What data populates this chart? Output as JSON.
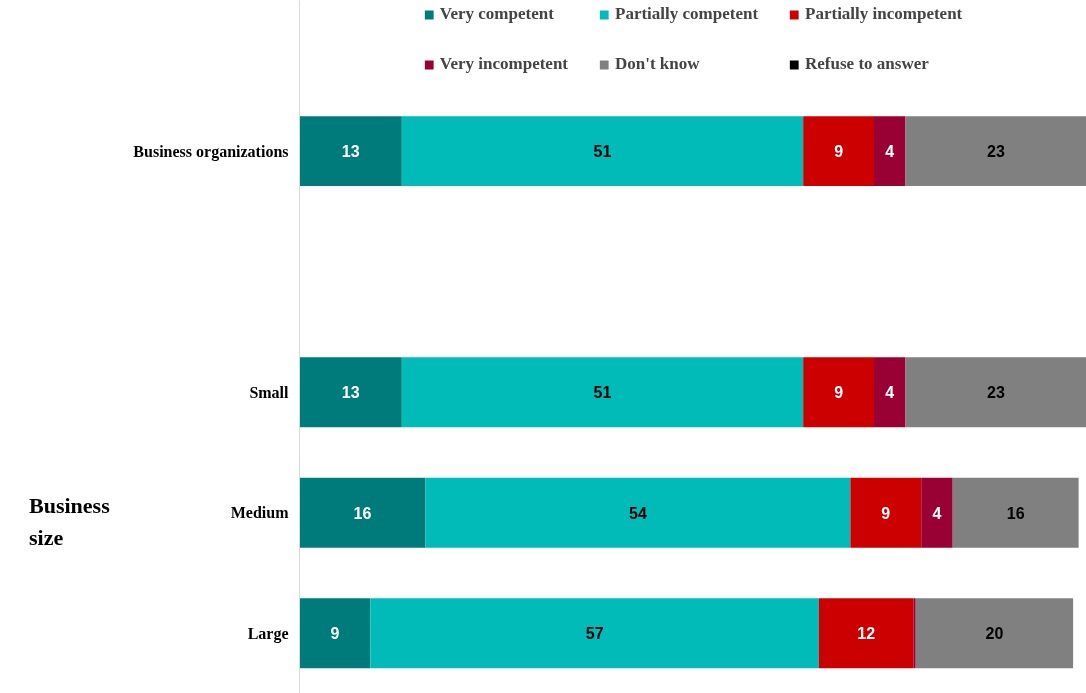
{
  "chart_data": {
    "type": "bar",
    "orientation": "horizontal",
    "stacked": true,
    "legend": "top",
    "categories": [
      "Business organizations",
      null,
      "Small",
      "Medium",
      "Large"
    ],
    "series": [
      {
        "name": "Very competent",
        "color": "#007b7b",
        "values": [
          13,
          null,
          13,
          16,
          9
        ],
        "value_labels": [
          "13",
          null,
          "13",
          "16",
          "9"
        ]
      },
      {
        "name": "Partially competent",
        "color": "#00bbb8",
        "values": [
          51,
          null,
          51,
          54,
          57
        ],
        "value_labels": [
          "51",
          null,
          "51",
          "54",
          "57"
        ]
      },
      {
        "name": "Partially incompetent",
        "color": "#cc0000",
        "values": [
          9,
          null,
          9,
          9,
          12
        ],
        "value_labels": [
          "9",
          null,
          "9",
          "9",
          "12"
        ]
      },
      {
        "name": "Very incompetent",
        "color": "#990033",
        "values": [
          4,
          null,
          4,
          4,
          0.3
        ],
        "value_labels": [
          "4",
          null,
          "4",
          "4",
          null
        ]
      },
      {
        "name": "Don't know",
        "color": "#808080",
        "values": [
          23,
          null,
          23,
          16,
          20
        ],
        "value_labels": [
          "23",
          null,
          "23",
          "16",
          "20"
        ]
      },
      {
        "name": "Refuse to answer",
        "color": "#000000",
        "values": [
          null,
          null,
          null,
          null,
          null
        ]
      }
    ],
    "annotations": [
      "Business size"
    ]
  }
}
